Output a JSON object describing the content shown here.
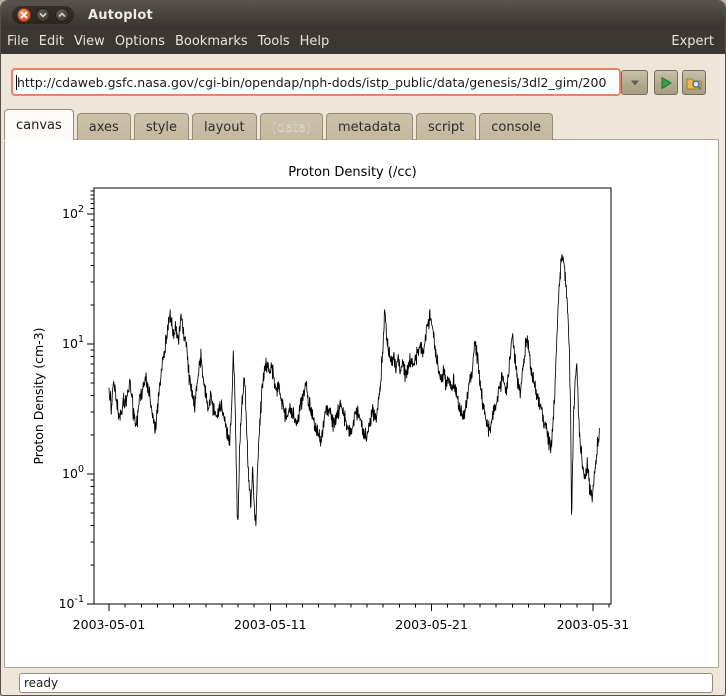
{
  "window": {
    "title": "Autoplot",
    "controls": {
      "close": "close",
      "minimize": "minimize",
      "maximize": "maximize"
    }
  },
  "menu_bar": {
    "items": [
      "File",
      "Edit",
      "View",
      "Options",
      "Bookmarks",
      "Tools",
      "Help"
    ],
    "right_label": "Expert"
  },
  "address_bar": {
    "url": "http://cdaweb.gsfc.nasa.gov/cgi-bin/opendap/nph-dods/istp_public/data/genesis/3dl2_gim/200",
    "dropdown_icon": "chevron-down-icon",
    "go_icon": "play-icon",
    "inspect_icon": "folder-magnifier-icon"
  },
  "tabs": {
    "items": [
      {
        "label": "canvas",
        "state": "active"
      },
      {
        "label": "axes",
        "state": "normal"
      },
      {
        "label": "style",
        "state": "normal"
      },
      {
        "label": "layout",
        "state": "normal"
      },
      {
        "label": "(data)",
        "state": "disabled"
      },
      {
        "label": "metadata",
        "state": "normal"
      },
      {
        "label": "script",
        "state": "normal"
      },
      {
        "label": "console",
        "state": "normal"
      }
    ]
  },
  "status_bar": {
    "text": "ready"
  },
  "colors": {
    "titlebar": "#3c3933",
    "menubar": "#3b3834",
    "background": "#ede6d9",
    "focus_ring": "#ee8265",
    "close_button": "#e06034",
    "play_green": "#35a043",
    "tab_inactive": "#c6bba2",
    "plot_line": "#000000"
  },
  "chart_data": {
    "type": "line",
    "title": "Proton Density (/cc)",
    "ylabel": "Proton Density (cm-3)",
    "xlabel": "",
    "y_scale": "log",
    "ylim": [
      0.1,
      158
    ],
    "x_range": [
      "2003-05-01",
      "2003-05-31"
    ],
    "grid": false,
    "legend": null,
    "x_major_ticks": [
      {
        "day": 0,
        "label": "2003-05-01"
      },
      {
        "day": 10,
        "label": "2003-05-11"
      },
      {
        "day": 20,
        "label": "2003-05-21"
      },
      {
        "day": 30,
        "label": "2003-05-31"
      }
    ],
    "y_major_ticks": [
      {
        "value": 100,
        "mantissa": "10",
        "exp": "2"
      },
      {
        "value": 10,
        "mantissa": "10",
        "exp": "1"
      },
      {
        "value": 1,
        "mantissa": "10",
        "exp": "0"
      },
      {
        "value": 0.1,
        "mantissa": "10",
        "exp": "-1"
      }
    ],
    "series": [
      {
        "name": "Proton Density",
        "color": "#000000",
        "units": "cm-3",
        "points": [
          [
            0.0,
            4.5
          ],
          [
            0.15,
            3.4
          ],
          [
            0.3,
            5.4
          ],
          [
            0.5,
            3.2
          ],
          [
            0.7,
            2.6
          ],
          [
            0.9,
            4.0
          ],
          [
            1.1,
            3.4
          ],
          [
            1.3,
            5.2
          ],
          [
            1.5,
            3.0
          ],
          [
            1.7,
            2.4
          ],
          [
            1.9,
            3.8
          ],
          [
            2.1,
            4.6
          ],
          [
            2.3,
            5.5
          ],
          [
            2.5,
            4.2
          ],
          [
            2.7,
            2.8
          ],
          [
            2.9,
            2.1
          ],
          [
            3.05,
            3.6
          ],
          [
            3.2,
            5.4
          ],
          [
            3.35,
            7.5
          ],
          [
            3.5,
            9.5
          ],
          [
            3.65,
            13
          ],
          [
            3.8,
            17
          ],
          [
            3.9,
            14.5
          ],
          [
            4.0,
            11
          ],
          [
            4.15,
            13.5
          ],
          [
            4.3,
            10.5
          ],
          [
            4.45,
            15.5
          ],
          [
            4.55,
            13.5
          ],
          [
            4.7,
            11
          ],
          [
            4.85,
            8
          ],
          [
            5.0,
            5.0
          ],
          [
            5.15,
            4.2
          ],
          [
            5.3,
            3.4
          ],
          [
            5.45,
            4.6
          ],
          [
            5.6,
            6.6
          ],
          [
            5.7,
            7.8
          ],
          [
            5.85,
            5.2
          ],
          [
            6.0,
            4.0
          ],
          [
            6.15,
            3.2
          ],
          [
            6.3,
            3.9
          ],
          [
            6.5,
            3.0
          ],
          [
            6.7,
            2.6
          ],
          [
            6.85,
            3.5
          ],
          [
            7.0,
            3.2
          ],
          [
            7.15,
            2.7
          ],
          [
            7.3,
            2.1
          ],
          [
            7.45,
            1.6
          ],
          [
            7.6,
            2.9
          ],
          [
            7.7,
            8.8
          ],
          [
            7.8,
            4.2
          ],
          [
            7.9,
            1.1
          ],
          [
            7.98,
            0.33
          ],
          [
            8.1,
            1.6
          ],
          [
            8.25,
            3.6
          ],
          [
            8.4,
            5.8
          ],
          [
            8.5,
            2.8
          ],
          [
            8.6,
            1.3
          ],
          [
            8.7,
            0.8
          ],
          [
            8.8,
            0.58
          ],
          [
            8.9,
            1.1
          ],
          [
            9.0,
            0.52
          ],
          [
            9.1,
            0.42
          ],
          [
            9.2,
            0.95
          ],
          [
            9.35,
            2.4
          ],
          [
            9.5,
            4.5
          ],
          [
            9.65,
            6.5
          ],
          [
            9.8,
            7.2
          ],
          [
            9.95,
            5.8
          ],
          [
            10.1,
            6.6
          ],
          [
            10.25,
            5.0
          ],
          [
            10.4,
            4.2
          ],
          [
            10.55,
            4.8
          ],
          [
            10.7,
            3.6
          ],
          [
            10.85,
            3.0
          ],
          [
            11.05,
            2.6
          ],
          [
            11.25,
            3.3
          ],
          [
            11.45,
            2.8
          ],
          [
            11.65,
            2.4
          ],
          [
            11.85,
            3.1
          ],
          [
            12.05,
            3.9
          ],
          [
            12.2,
            5.0
          ],
          [
            12.35,
            3.6
          ],
          [
            12.55,
            2.9
          ],
          [
            12.75,
            2.4
          ],
          [
            12.95,
            2.0
          ],
          [
            13.15,
            1.8
          ],
          [
            13.35,
            2.6
          ],
          [
            13.55,
            3.2
          ],
          [
            13.75,
            2.7
          ],
          [
            13.95,
            2.3
          ],
          [
            14.15,
            2.9
          ],
          [
            14.35,
            3.4
          ],
          [
            14.55,
            2.8
          ],
          [
            14.75,
            2.3
          ],
          [
            14.95,
            2.0
          ],
          [
            15.15,
            2.5
          ],
          [
            15.35,
            3.0
          ],
          [
            15.55,
            2.6
          ],
          [
            15.75,
            2.2
          ],
          [
            15.95,
            1.9
          ],
          [
            16.15,
            2.4
          ],
          [
            16.35,
            2.9
          ],
          [
            16.55,
            2.6
          ],
          [
            16.7,
            3.4
          ],
          [
            16.85,
            5.2
          ],
          [
            17.0,
            10
          ],
          [
            17.1,
            18.5
          ],
          [
            17.2,
            12
          ],
          [
            17.35,
            8.5
          ],
          [
            17.5,
            7.0
          ],
          [
            17.65,
            8.2
          ],
          [
            17.8,
            6.2
          ],
          [
            17.95,
            7.5
          ],
          [
            18.1,
            6.0
          ],
          [
            18.25,
            6.8
          ],
          [
            18.4,
            5.4
          ],
          [
            18.55,
            6.6
          ],
          [
            18.7,
            7.8
          ],
          [
            18.85,
            6.6
          ],
          [
            19.0,
            7.4
          ],
          [
            19.15,
            8.6
          ],
          [
            19.3,
            9.6
          ],
          [
            19.45,
            8.2
          ],
          [
            19.6,
            11
          ],
          [
            19.75,
            13.5
          ],
          [
            19.9,
            16
          ],
          [
            20.0,
            14
          ],
          [
            20.15,
            11
          ],
          [
            20.3,
            8.0
          ],
          [
            20.45,
            6.2
          ],
          [
            20.6,
            5.2
          ],
          [
            20.75,
            6.0
          ],
          [
            20.9,
            4.6
          ],
          [
            21.05,
            5.5
          ],
          [
            21.2,
            4.4
          ],
          [
            21.35,
            5.0
          ],
          [
            21.55,
            4.0
          ],
          [
            21.75,
            3.2
          ],
          [
            21.95,
            2.6
          ],
          [
            22.15,
            3.5
          ],
          [
            22.35,
            4.8
          ],
          [
            22.55,
            6.6
          ],
          [
            22.7,
            10
          ],
          [
            22.85,
            7.5
          ],
          [
            23.0,
            5.0
          ],
          [
            23.2,
            3.4
          ],
          [
            23.4,
            2.4
          ],
          [
            23.6,
            2.1
          ],
          [
            23.8,
            2.8
          ],
          [
            24.0,
            3.5
          ],
          [
            24.2,
            4.4
          ],
          [
            24.4,
            5.5
          ],
          [
            24.6,
            4.2
          ],
          [
            24.8,
            6.5
          ],
          [
            25.0,
            12
          ],
          [
            25.15,
            8.0
          ],
          [
            25.3,
            5.2
          ],
          [
            25.5,
            4.1
          ],
          [
            25.7,
            7.0
          ],
          [
            25.9,
            11
          ],
          [
            26.05,
            8.5
          ],
          [
            26.2,
            6.0
          ],
          [
            26.4,
            4.6
          ],
          [
            26.6,
            3.8
          ],
          [
            26.8,
            3.0
          ],
          [
            27.0,
            2.4
          ],
          [
            27.2,
            1.9
          ],
          [
            27.4,
            1.5
          ],
          [
            27.55,
            2.7
          ],
          [
            27.7,
            6.5
          ],
          [
            27.85,
            20
          ],
          [
            28.0,
            38
          ],
          [
            28.1,
            48
          ],
          [
            28.2,
            42
          ],
          [
            28.3,
            30
          ],
          [
            28.45,
            18
          ],
          [
            28.55,
            8.0
          ],
          [
            28.62,
            2.6
          ],
          [
            28.68,
            0.42
          ],
          [
            28.78,
            2.2
          ],
          [
            28.9,
            5.0
          ],
          [
            29.0,
            6.8
          ],
          [
            29.1,
            3.2
          ],
          [
            29.2,
            1.8
          ],
          [
            29.35,
            1.2
          ],
          [
            29.5,
            0.9
          ],
          [
            29.65,
            1.15
          ],
          [
            29.8,
            0.75
          ],
          [
            29.95,
            0.65
          ],
          [
            30.1,
            0.95
          ],
          [
            30.25,
            1.5
          ],
          [
            30.4,
            2.0
          ]
        ]
      }
    ]
  }
}
